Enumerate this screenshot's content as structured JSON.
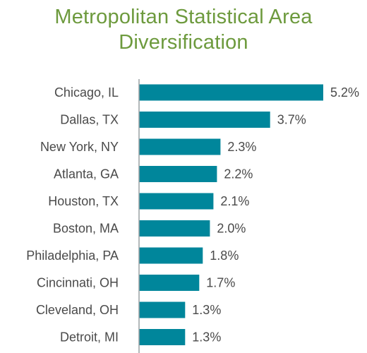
{
  "colors": {
    "title": "#6d9a3d",
    "bar": "#00869b",
    "axis": "#9aa0a3",
    "label": "#4a4a4a"
  },
  "chart_data": {
    "type": "bar",
    "orientation": "horizontal",
    "title_lines": [
      "Metropolitan Statistical Area",
      "Diversification"
    ],
    "xlabel": "",
    "ylabel": "",
    "xlim": [
      0,
      5.2
    ],
    "grid": false,
    "legend": "none",
    "categories": [
      "Chicago, IL",
      "Dallas, TX",
      "New York, NY",
      "Atlanta, GA",
      "Houston, TX",
      "Boston, MA",
      "Philadelphia, PA",
      "Cincinnati, OH",
      "Cleveland, OH",
      "Detroit, MI"
    ],
    "values": [
      5.2,
      3.7,
      2.3,
      2.2,
      2.1,
      2.0,
      1.8,
      1.7,
      1.3,
      1.3
    ],
    "value_labels": [
      "5.2%",
      "3.7%",
      "2.3%",
      "2.2%",
      "2.1%",
      "2.0%",
      "1.8%",
      "1.7%",
      "1.3%",
      "1.3%"
    ]
  }
}
